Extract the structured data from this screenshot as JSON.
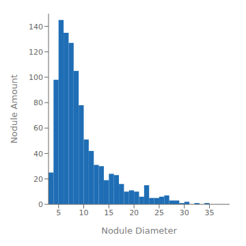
{
  "chart_data": {
    "type": "histogram",
    "xlabel": "Nodule Diameter",
    "ylabel": "Nodule Amount",
    "bins": [
      3,
      4,
      5,
      6,
      7,
      8,
      9,
      10,
      11,
      12,
      13,
      14,
      15,
      16,
      17,
      18,
      19,
      20,
      21,
      22,
      23,
      24,
      25,
      26,
      27,
      28,
      29,
      30,
      31,
      32,
      33,
      34,
      35
    ],
    "values": [
      25,
      98,
      145,
      135,
      127,
      105,
      78,
      51,
      42,
      31,
      30,
      19,
      24,
      23,
      16,
      10,
      11,
      10,
      6,
      15,
      5,
      5,
      6,
      7,
      3,
      3,
      1,
      2,
      0,
      1,
      0,
      1
    ],
    "color": "#1f6eb5",
    "xlim": [
      3,
      39
    ],
    "ylim": [
      0,
      150
    ],
    "xticks": [
      5,
      10,
      15,
      20,
      25,
      30,
      35
    ],
    "yticks": [
      0,
      20,
      40,
      60,
      80,
      100,
      120,
      140
    ],
    "grid": false
  }
}
